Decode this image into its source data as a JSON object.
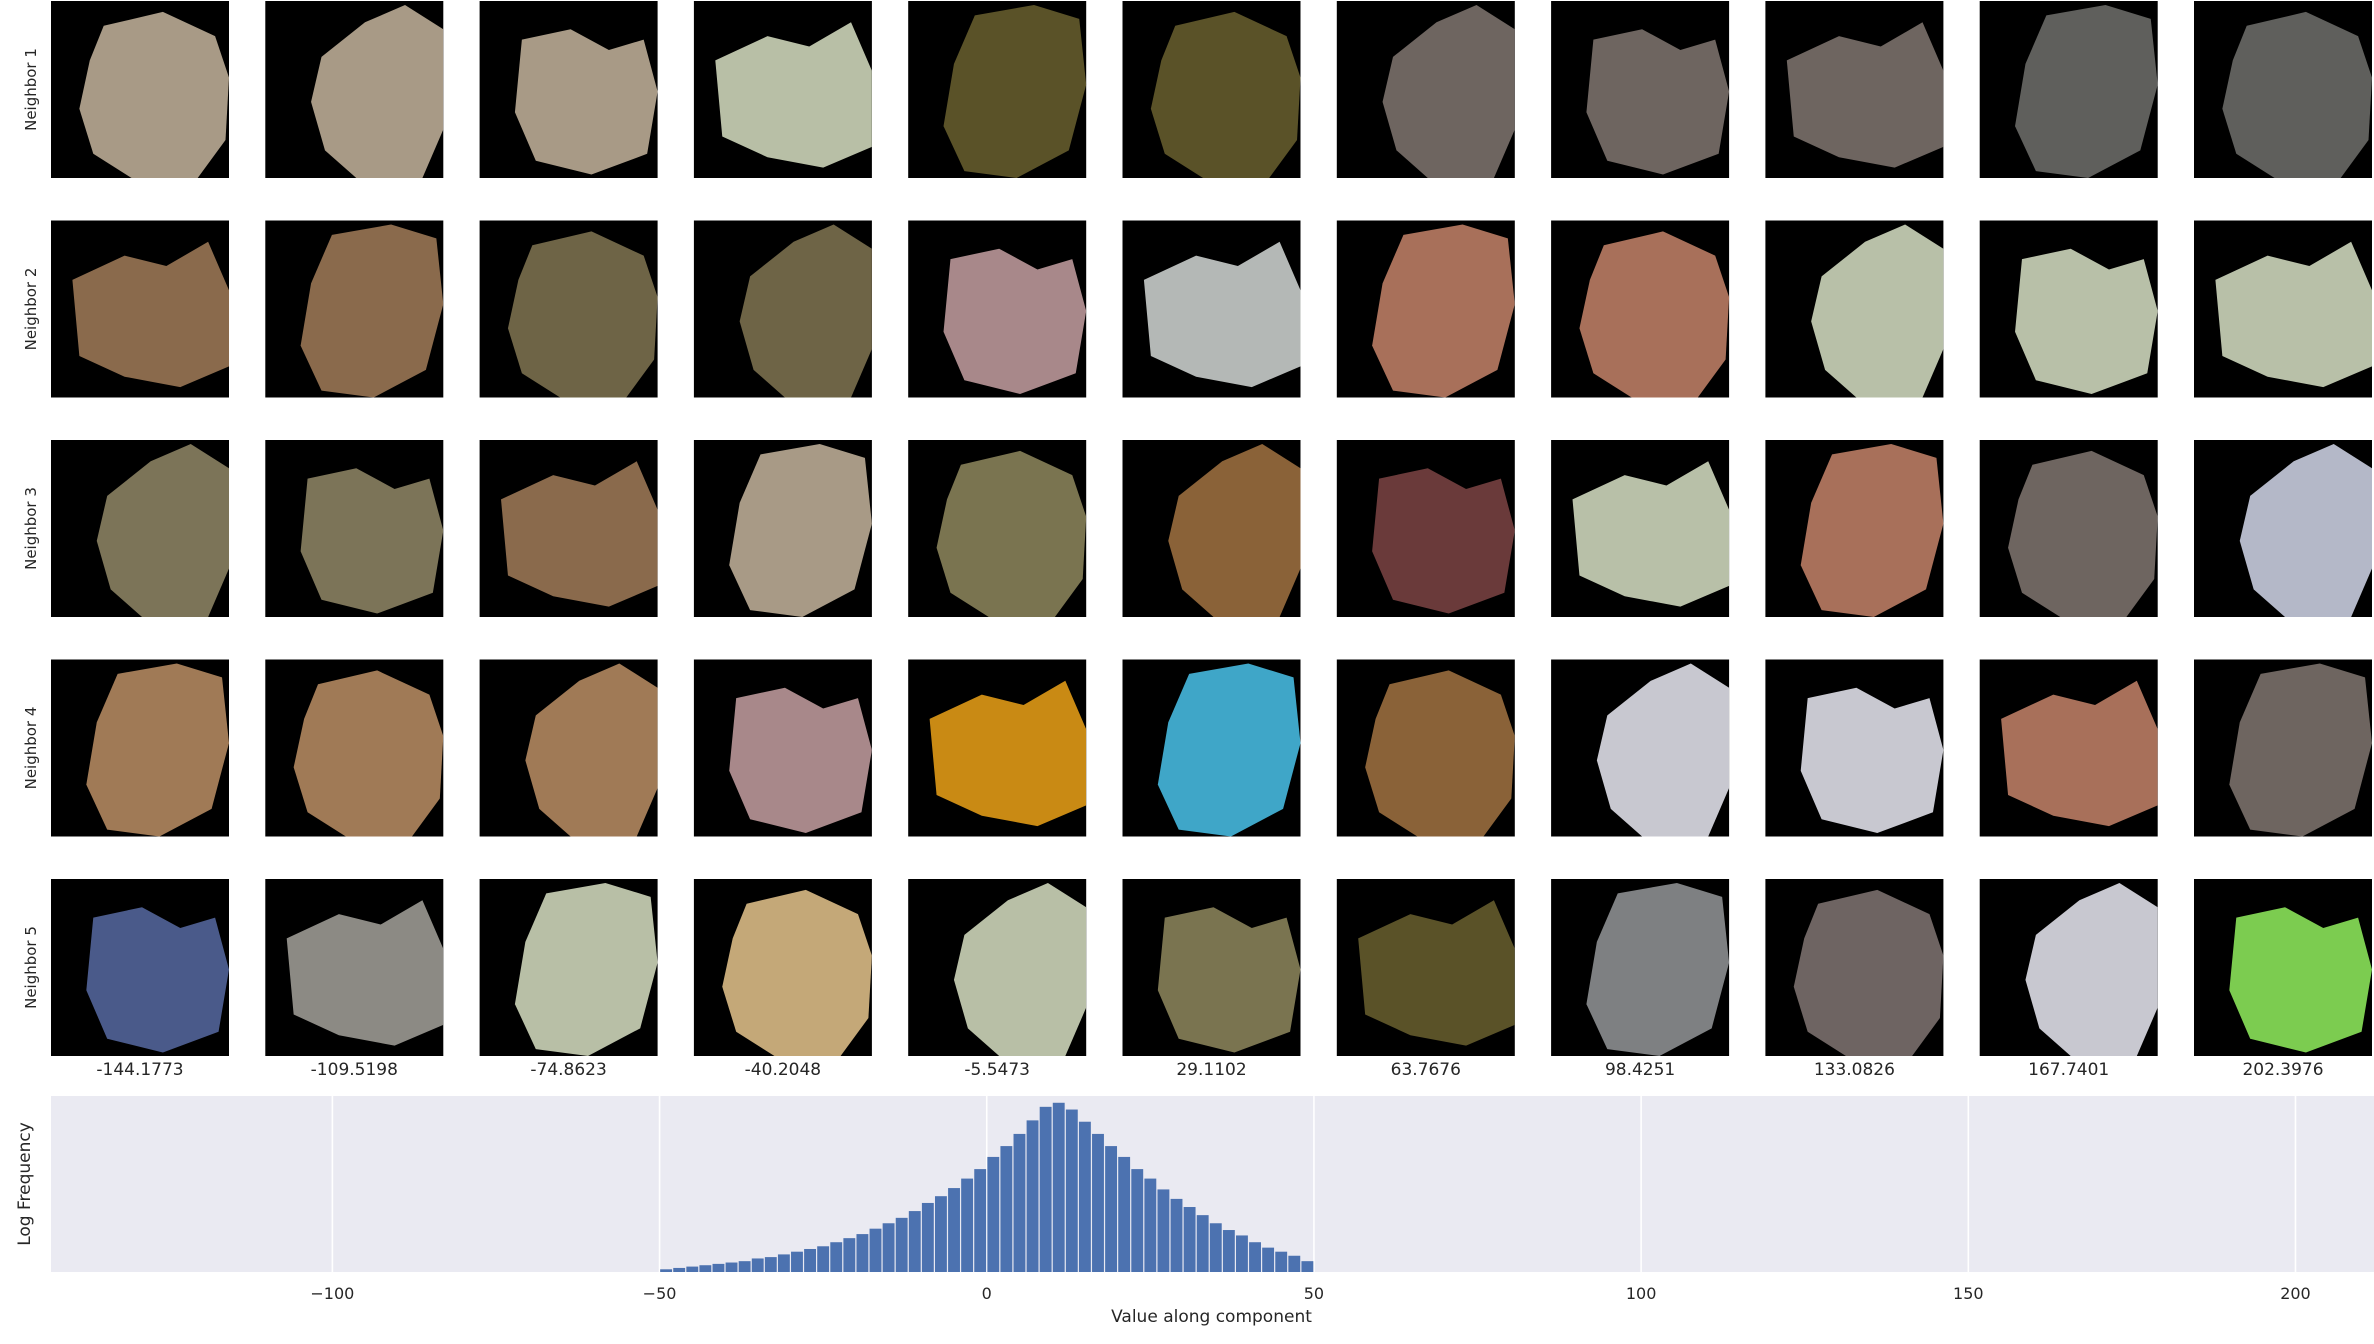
{
  "grid": {
    "row_labels": [
      "Neighbor 1",
      "Neighbor 2",
      "Neighbor 3",
      "Neighbor 4",
      "Neighbor 5"
    ],
    "column_values": [
      "-144.1773",
      "-109.5198",
      "-74.8623",
      "-40.2048",
      "-5.5473",
      "29.1102",
      "63.7676",
      "98.4251",
      "133.0826",
      "167.7401",
      "202.3976"
    ],
    "patches": [
      [
        "#a89a86",
        "#a89a86",
        "#a89a86",
        "#b8bfa6",
        "#5a5228",
        "#5a5228",
        "#6e6560",
        "#6e6560",
        "#6e6560",
        "#5f5f5c",
        "#5f5f5c"
      ],
      [
        "#8a6a4c",
        "#8a6a4c",
        "#6e6446",
        "#6e6446",
        "#a8888a",
        "#b4b8b6",
        "#a8705a",
        "#a8705a",
        "#b8c0a8",
        "#b8c0a8",
        "#b8c0a8"
      ],
      [
        "#7c7458",
        "#7c7458",
        "#8a6a4c",
        "#a89a86",
        "#7a7450",
        "#8a6238",
        "#6a3a3a",
        "#b8c0a8",
        "#a8705a",
        "#6e6560",
        "#b4b8c8"
      ],
      [
        "#a07a56",
        "#a07a56",
        "#a07a56",
        "#a8888a",
        "#c98a14",
        "#3fa6c8",
        "#8a6238",
        "#c8c8d0",
        "#c8c8d0",
        "#a8705a",
        "#6e6560"
      ],
      [
        "#4a5a8a",
        "#8c8a84",
        "#b8bfa6",
        "#c4a878",
        "#b8bfa6",
        "#7a7450",
        "#5a5228",
        "#7e8082",
        "#6e6462",
        "#c8c8d0",
        "#7ccc50"
      ]
    ]
  },
  "chart_data": {
    "type": "bar",
    "title": "",
    "xlabel": "Value along component",
    "ylabel": "Log Frequency",
    "xlim": [
      -143,
      212
    ],
    "xticks": [
      -100,
      -50,
      0,
      50,
      100,
      150,
      200
    ],
    "xtick_labels": [
      "−100",
      "−50",
      "0",
      "50",
      "100",
      "150",
      "200"
    ],
    "grid": true,
    "bar_color": "#4c72b0",
    "background_color": "#eaeaf2",
    "bins": {
      "start": -50,
      "width": 2,
      "log_frequency": [
        0.2,
        0.3,
        0.4,
        0.5,
        0.6,
        0.7,
        0.8,
        1.0,
        1.1,
        1.3,
        1.5,
        1.7,
        1.9,
        2.2,
        2.5,
        2.8,
        3.2,
        3.6,
        4.0,
        4.5,
        5.1,
        5.6,
        6.2,
        6.9,
        7.6,
        8.5,
        9.3,
        10.2,
        11.2,
        12.2,
        12.5,
        12.0,
        11.1,
        10.2,
        9.3,
        8.5,
        7.6,
        6.9,
        6.1,
        5.4,
        4.8,
        4.2,
        3.6,
        3.1,
        2.7,
        2.2,
        1.8,
        1.5,
        1.2,
        0.8
      ]
    },
    "ylim": [
      0,
      13
    ]
  }
}
